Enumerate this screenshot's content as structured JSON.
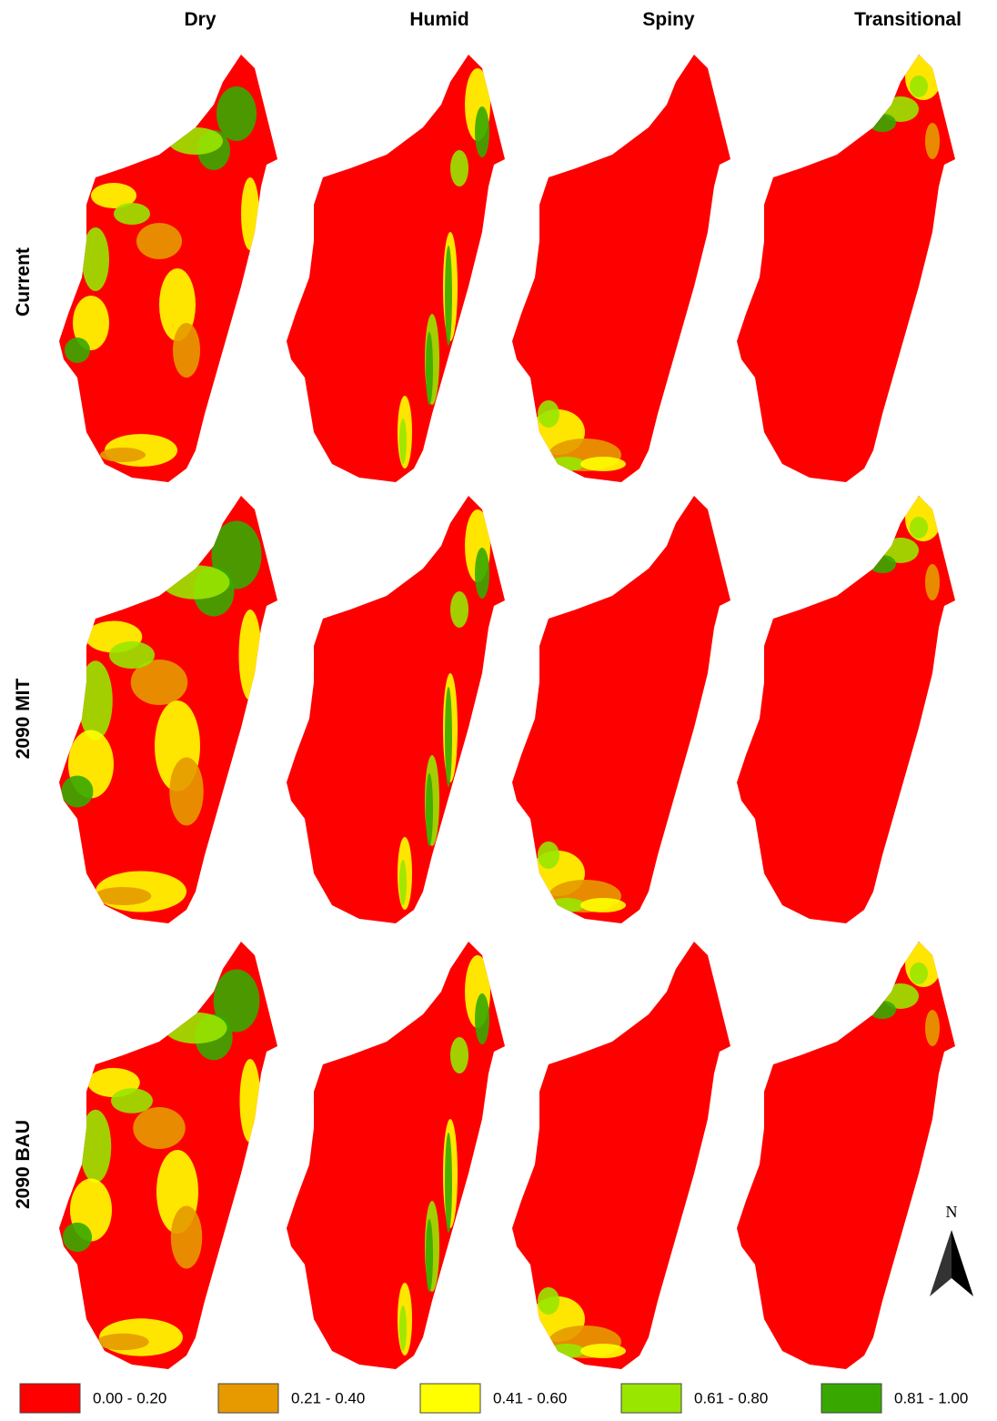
{
  "columns": [
    "Dry",
    "Humid",
    "Spiny",
    "Transitional"
  ],
  "rows": [
    "Current",
    "2090 MIT",
    "2090 BAU"
  ],
  "legend": [
    {
      "label": "0.00 - 0.20",
      "color": "#ff0000"
    },
    {
      "label": "0.21 - 0.40",
      "color": "#e69a00"
    },
    {
      "label": "0.41 - 0.60",
      "color": "#ffff00"
    },
    {
      "label": "0.61 - 0.80",
      "color": "#99e600"
    },
    {
      "label": "0.81 - 1.00",
      "color": "#38a800"
    }
  ],
  "north_arrow": "N"
}
